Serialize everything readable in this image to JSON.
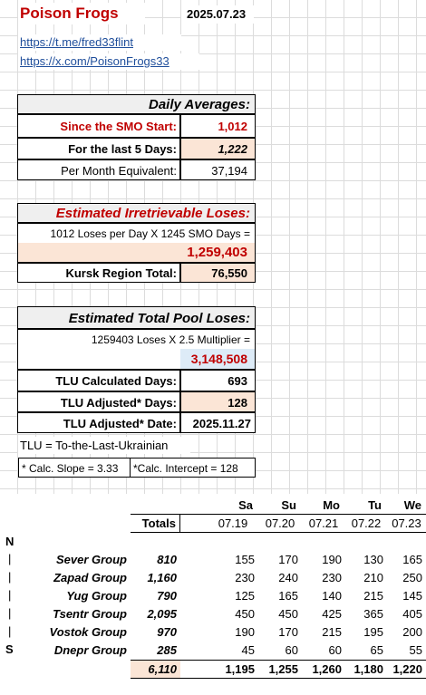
{
  "title": "Poison Frogs",
  "date": "2025.07.23",
  "links": [
    "https://t.me/fred33flint",
    "https://x.com/PoisonFrogs33"
  ],
  "daily": {
    "header": "Daily Averages:",
    "smo_label": "Since the SMO Start:",
    "smo_value": "1,012",
    "last5_label": "For the last 5 Days:",
    "last5_value": "1,222",
    "month_label": "Per Month Equivalent:",
    "month_value": "37,194"
  },
  "irretrievable": {
    "header": "Estimated Irretrievable Loses:",
    "formula": "1012 Loses per Day X 1245 SMO Days =",
    "value": "1,259,403",
    "kursk_label": "Kursk Region Total:",
    "kursk_value": "76,550"
  },
  "pool": {
    "header": "Estimated Total Pool Loses:",
    "formula": "1259403 Loses X 2.5 Multiplier =",
    "value": "3,148,508",
    "tlu_calc_label": "TLU Calculated Days:",
    "tlu_calc_value": "693",
    "tlu_adj_label": "TLU Adjusted* Days:",
    "tlu_adj_value": "128",
    "tlu_date_label": "TLU Adjusted* Date:",
    "tlu_date_value": "2025.11.27"
  },
  "tlu_def": "TLU = To-the-Last-Ukrainian",
  "slope": "* Calc. Slope = 3.33",
  "intercept": "*Calc. Intercept = 128",
  "table": {
    "totals_label": "Totals",
    "days": [
      "Sa",
      "Su",
      "Mo",
      "Tu",
      "We"
    ],
    "dates": [
      "07.19",
      "07.20",
      "07.21",
      "07.22",
      "07.23"
    ],
    "markers": [
      "N",
      "|",
      "|",
      "|",
      "|",
      "|",
      "S"
    ],
    "rows": [
      {
        "name": "Sever Group",
        "total": "810",
        "vals": [
          "155",
          "170",
          "190",
          "130",
          "165"
        ]
      },
      {
        "name": "Zapad Group",
        "total": "1,160",
        "vals": [
          "230",
          "240",
          "230",
          "210",
          "250"
        ]
      },
      {
        "name": "Yug Group",
        "total": "790",
        "vals": [
          "125",
          "165",
          "140",
          "215",
          "145"
        ]
      },
      {
        "name": "Tsentr Group",
        "total": "2,095",
        "vals": [
          "450",
          "450",
          "425",
          "365",
          "405"
        ]
      },
      {
        "name": "Vostok Group",
        "total": "970",
        "vals": [
          "190",
          "170",
          "215",
          "195",
          "200"
        ]
      },
      {
        "name": "Dnepr Group",
        "total": "285",
        "vals": [
          "45",
          "60",
          "60",
          "65",
          "55"
        ]
      }
    ],
    "grand_total": "6,110",
    "day_totals": [
      "1,195",
      "1,255",
      "1,260",
      "1,180",
      "1,220"
    ]
  }
}
